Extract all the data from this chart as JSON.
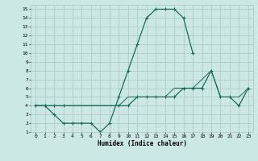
{
  "xlabel": "Humidex (Indice chaleur)",
  "bg_color": "#cce8e4",
  "grid_color": "#a8c8c0",
  "line_color": "#1a6b5a",
  "xlim": [
    -0.5,
    23.5
  ],
  "ylim": [
    1,
    15.5
  ],
  "xticks": [
    0,
    1,
    2,
    3,
    4,
    5,
    6,
    7,
    8,
    9,
    10,
    11,
    12,
    13,
    14,
    15,
    16,
    17,
    18,
    19,
    20,
    21,
    22,
    23
  ],
  "yticks": [
    1,
    2,
    3,
    4,
    5,
    6,
    7,
    8,
    9,
    10,
    11,
    12,
    13,
    14,
    15
  ],
  "line1_x": [
    0,
    1,
    2,
    3,
    4,
    5,
    6,
    7,
    8,
    9,
    10,
    11,
    12,
    13,
    14,
    15,
    16,
    17
  ],
  "line1_y": [
    4,
    4,
    3,
    2,
    2,
    2,
    2,
    1,
    2,
    5,
    8,
    11,
    14,
    15,
    15,
    15,
    14,
    10
  ],
  "line2_x": [
    0,
    1,
    2,
    3,
    9,
    10,
    11,
    12,
    13,
    14,
    15,
    16,
    17,
    18,
    19,
    20,
    21,
    22,
    23
  ],
  "line2_y": [
    4,
    4,
    4,
    4,
    4,
    4,
    5,
    5,
    5,
    5,
    5,
    6,
    6,
    6,
    8,
    5,
    5,
    4,
    6
  ],
  "line3_x": [
    0,
    1,
    2,
    3,
    9,
    10,
    11,
    12,
    13,
    14,
    15,
    16,
    17,
    18,
    19,
    20,
    21,
    22,
    23
  ],
  "line3_y": [
    4,
    4,
    4,
    4,
    4,
    5,
    5,
    5,
    5,
    5,
    6,
    6,
    6,
    7,
    8,
    5,
    5,
    5,
    6
  ]
}
